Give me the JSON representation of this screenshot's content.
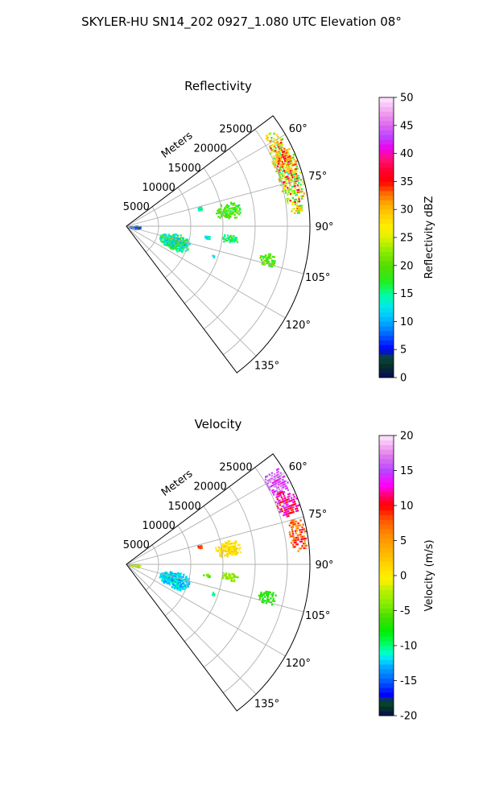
{
  "suptitle": "SKYLER-HU  SN14_202  0927_1.080 UTC Elevation 08°",
  "chart_data": [
    {
      "type": "heatmap",
      "subtype": "polar-sector",
      "title": "Reflectivity",
      "range_label": "Meters",
      "range_ticks": [
        5000,
        10000,
        15000,
        20000,
        25000
      ],
      "range_tick_labels": [
        "5000",
        "10000",
        "15000",
        "20000",
        "25000"
      ],
      "range_max": 28500,
      "azimuth_range": [
        53,
        143
      ],
      "azimuth_ticks": [
        60,
        75,
        90,
        105,
        120,
        135
      ],
      "azimuth_tick_labels": [
        "60°",
        "75°",
        "90°",
        "105°",
        "120°",
        "135°"
      ],
      "grid": true,
      "colorbar": {
        "label": "Reflectivity dBZ",
        "min": 0,
        "max": 50,
        "ticks": [
          0,
          5,
          10,
          15,
          20,
          25,
          30,
          35,
          40,
          45,
          50
        ],
        "tick_labels": [
          "0",
          "5",
          "10",
          "15",
          "20",
          "25",
          "30",
          "35",
          "40",
          "45",
          "50"
        ]
      },
      "echoes": [
        {
          "az_min": 56,
          "az_max": 86,
          "r_min": 24500,
          "r_max": 28400,
          "value": 26,
          "spread": 14
        },
        {
          "az_min": 62,
          "az_max": 72,
          "r_min": 25200,
          "r_max": 27800,
          "value": 32,
          "spread": 6
        },
        {
          "az_min": 76,
          "az_max": 86,
          "r_min": 13800,
          "r_max": 18000,
          "value": 19,
          "spread": 5
        },
        {
          "az_min": 100,
          "az_max": 106,
          "r_min": 21000,
          "r_max": 23800,
          "value": 20,
          "spread": 4
        },
        {
          "az_min": 98,
          "az_max": 117,
          "r_min": 5200,
          "r_max": 10200,
          "value": 15,
          "spread": 7
        },
        {
          "az_min": 85,
          "az_max": 103,
          "r_min": 200,
          "r_max": 2200,
          "value": 6,
          "spread": 6
        },
        {
          "az_min": 74,
          "az_max": 78,
          "r_min": 11200,
          "r_max": 12200,
          "value": 14,
          "spread": 3
        },
        {
          "az_min": 94,
          "az_max": 99,
          "r_min": 14500,
          "r_max": 17500,
          "value": 16,
          "spread": 4
        },
        {
          "az_min": 96,
          "az_max": 99,
          "r_min": 12000,
          "r_max": 13200,
          "value": 13,
          "spread": 3
        },
        {
          "az_min": 107,
          "az_max": 110,
          "r_min": 13800,
          "r_max": 14600,
          "value": 13,
          "spread": 3
        }
      ]
    },
    {
      "type": "heatmap",
      "subtype": "polar-sector",
      "title": "Velocity",
      "range_label": "Meters",
      "range_ticks": [
        5000,
        10000,
        15000,
        20000,
        25000
      ],
      "range_tick_labels": [
        "5000",
        "10000",
        "15000",
        "20000",
        "25000"
      ],
      "range_max": 28500,
      "azimuth_range": [
        53,
        143
      ],
      "azimuth_ticks": [
        60,
        75,
        90,
        105,
        120,
        135
      ],
      "azimuth_tick_labels": [
        "60°",
        "75°",
        "90°",
        "105°",
        "120°",
        "135°"
      ],
      "grid": true,
      "colorbar": {
        "label": "Velocity (m/s)",
        "min": -20,
        "max": 20,
        "ticks": [
          -20,
          -15,
          -10,
          -5,
          0,
          5,
          10,
          15,
          20
        ],
        "tick_labels": [
          "-20",
          "-15",
          "-10",
          "-5",
          "0",
          "5",
          "10",
          "15",
          "20"
        ]
      },
      "echoes": [
        {
          "az_min": 56,
          "az_max": 66,
          "r_min": 24800,
          "r_max": 28400,
          "value": 15,
          "spread": 3
        },
        {
          "az_min": 64,
          "az_max": 74,
          "r_min": 24800,
          "r_max": 28400,
          "value": 12,
          "spread": 4
        },
        {
          "az_min": 74,
          "az_max": 86,
          "r_min": 25500,
          "r_max": 28400,
          "value": 8,
          "spread": 4
        },
        {
          "az_min": 76,
          "az_max": 86,
          "r_min": 13800,
          "r_max": 18000,
          "value": 1,
          "spread": 2
        },
        {
          "az_min": 100,
          "az_max": 106,
          "r_min": 21000,
          "r_max": 23800,
          "value": -7,
          "spread": 2
        },
        {
          "az_min": 98,
          "az_max": 117,
          "r_min": 5200,
          "r_max": 10200,
          "value": -12,
          "spread": 2
        },
        {
          "az_min": 85,
          "az_max": 103,
          "r_min": 200,
          "r_max": 2200,
          "value": -3,
          "spread": 8
        },
        {
          "az_min": 74,
          "az_max": 78,
          "r_min": 11200,
          "r_max": 12200,
          "value": 9,
          "spread": 2
        },
        {
          "az_min": 94,
          "az_max": 99,
          "r_min": 14500,
          "r_max": 17500,
          "value": -4,
          "spread": 2
        },
        {
          "az_min": 96,
          "az_max": 99,
          "r_min": 12000,
          "r_max": 13200,
          "value": -6,
          "spread": 2
        },
        {
          "az_min": 107,
          "az_max": 110,
          "r_min": 13800,
          "r_max": 14600,
          "value": -10,
          "spread": 2
        }
      ]
    }
  ],
  "colors": {
    "grid": "#b0b0b0",
    "frame": "#000000"
  }
}
